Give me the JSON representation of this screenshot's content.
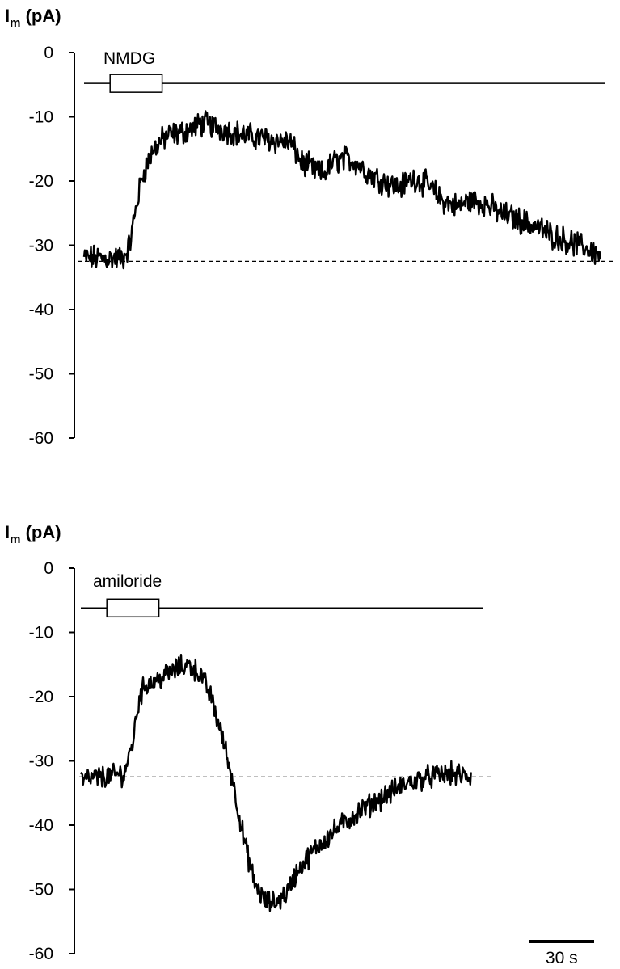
{
  "chart_data": [
    {
      "type": "line",
      "title": "",
      "ylabel_main": "I",
      "ylabel_sub": "m",
      "ylabel_unit": " (pA)",
      "ylim": [
        -60,
        0
      ],
      "yticks": [
        0,
        -10,
        -20,
        -30,
        -40,
        -50,
        -60
      ],
      "ytick_labels": [
        "0",
        "-10",
        "-20",
        "-30",
        "-40",
        "-50",
        "-60"
      ],
      "xlim": [
        0,
        240
      ],
      "x_unit": "s",
      "drug": {
        "label": "NMDG",
        "start": 12,
        "end": 36
      },
      "baseline": -32.5,
      "application_line_level": -4.8,
      "trace_noise": 1.6,
      "series": [
        {
          "x": [
            0,
            10,
            18,
            21,
            24,
            27,
            32,
            38,
            45,
            55,
            65,
            75,
            85,
            95,
            100,
            105,
            110,
            115,
            120,
            125,
            132,
            138,
            145,
            152,
            158,
            165,
            172,
            178,
            185,
            192,
            200,
            208,
            216,
            224,
            232,
            238
          ],
          "y": [
            -32,
            -32,
            -32,
            -30,
            -24,
            -19,
            -15,
            -13,
            -12.5,
            -11,
            -12,
            -13,
            -13.5,
            -14,
            -17,
            -18,
            -19,
            -17,
            -16.5,
            -17,
            -19,
            -20,
            -21,
            -19.5,
            -20.5,
            -23,
            -24,
            -23,
            -23.5,
            -25,
            -26,
            -27,
            -28.5,
            -29.5,
            -30.5,
            -31.5
          ]
        }
      ]
    },
    {
      "type": "line",
      "title": "",
      "ylabel_main": "I",
      "ylabel_sub": "m",
      "ylabel_unit": " (pA)",
      "ylim": [
        -60,
        0
      ],
      "yticks": [
        0,
        -10,
        -20,
        -30,
        -40,
        -50,
        -60
      ],
      "ytick_labels": [
        "0",
        "-10",
        "-20",
        "-30",
        "-40",
        "-50",
        "-60"
      ],
      "xlim": [
        0,
        240
      ],
      "x_unit": "s",
      "drug": {
        "label": "amiloride",
        "start": 12,
        "end": 36
      },
      "baseline": -32.5,
      "application_line_level": -6.2,
      "trace_noise": 1.4,
      "series": [
        {
          "x": [
            0,
            10,
            20,
            24,
            27,
            30,
            35,
            40,
            45,
            50,
            55,
            60,
            65,
            70,
            75,
            80,
            85,
            90,
            95,
            100,
            110,
            120,
            130,
            140,
            150,
            160,
            170,
            180
          ],
          "y": [
            -33,
            -32.5,
            -32,
            -27,
            -20,
            -18,
            -17.5,
            -16.5,
            -15.5,
            -15,
            -16.5,
            -20,
            -26,
            -33,
            -42,
            -49,
            -52,
            -52,
            -50.5,
            -47,
            -43,
            -40,
            -37.5,
            -35.5,
            -33.5,
            -32.5,
            -32,
            -32.5
          ]
        }
      ]
    }
  ],
  "scale_bar": {
    "label": "30 s",
    "seconds": 30
  }
}
